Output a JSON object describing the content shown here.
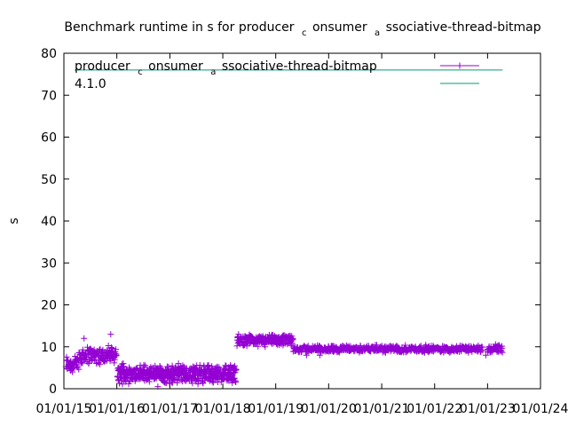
{
  "chart_data": {
    "type": "scatter",
    "title": {
      "pre": "Benchmark runtime in s for producer",
      "sub1": "c",
      "mid": "onsumer",
      "sub2": "a",
      "post": "ssociative-thread-bitmap"
    },
    "xlabel": "",
    "ylabel": "s",
    "xlim": [
      "2015-01-01",
      "2024-01-01"
    ],
    "ylim": [
      0,
      80
    ],
    "yticks": [
      0,
      10,
      20,
      30,
      40,
      50,
      60,
      70,
      80
    ],
    "xticks": [
      "01/01/15",
      "01/01/16",
      "01/01/17",
      "01/01/18",
      "01/01/19",
      "01/01/20",
      "01/01/21",
      "01/01/22",
      "01/01/23",
      "01/01/24"
    ],
    "legend_position": "top-right",
    "grid": false,
    "series": [
      {
        "name": {
          "pre": "producer",
          "sub1": "c",
          "mid": "onsumer",
          "sub2": "a",
          "post": "ssociative-thread-bitmap"
        },
        "style": "points",
        "marker": "plus",
        "color": "#9400d3",
        "segments": [
          {
            "start": "2015-01-15",
            "end": "2015-04-15",
            "center": 6,
            "spread": 2.5,
            "count": 45
          },
          {
            "start": "2015-04-15",
            "end": "2015-12-31",
            "center": 8,
            "spread": 2.5,
            "count": 130
          },
          {
            "start": "2016-01-05",
            "end": "2018-04-05",
            "center": 3.5,
            "spread": 2.5,
            "count": 560
          },
          {
            "start": "2018-04-08",
            "end": "2019-05-01",
            "center": 11.5,
            "spread": 1.5,
            "count": 200
          },
          {
            "start": "2019-05-01",
            "end": "2022-11-30",
            "center": 9.5,
            "spread": 1.0,
            "count": 520
          },
          {
            "start": "2023-01-01",
            "end": "2023-04-15",
            "center": 9.5,
            "spread": 1.2,
            "count": 40
          }
        ],
        "outliers": [
          {
            "x": "2015-03-01",
            "y": 4
          },
          {
            "x": "2015-05-20",
            "y": 12
          },
          {
            "x": "2015-11-20",
            "y": 13
          },
          {
            "x": "2016-02-15",
            "y": 6
          },
          {
            "x": "2016-10-10",
            "y": 0.5
          },
          {
            "x": "2017-03-01",
            "y": 6
          },
          {
            "x": "2018-04-20",
            "y": 13
          },
          {
            "x": "2018-10-20",
            "y": 10
          },
          {
            "x": "2019-08-01",
            "y": 8
          },
          {
            "x": "2019-11-01",
            "y": 8
          },
          {
            "x": "2022-12-20",
            "y": 8
          }
        ]
      },
      {
        "name": "4.1.0",
        "style": "line",
        "color": "#009e73",
        "y": 76
      }
    ]
  }
}
